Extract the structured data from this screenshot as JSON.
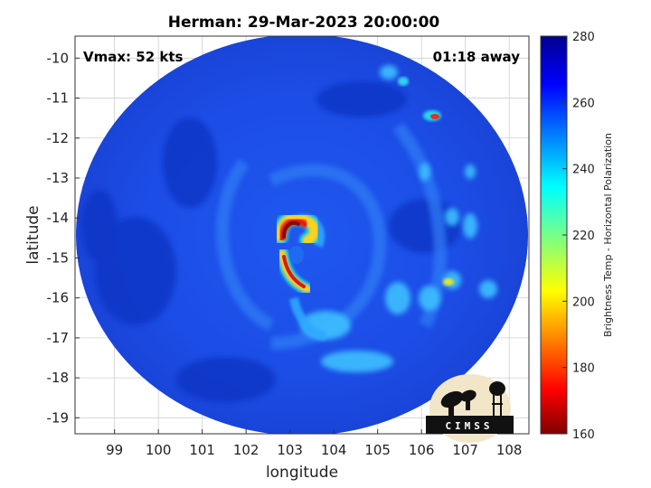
{
  "title": "Herman: 29-Mar-2023 20:00:00",
  "annotations": {
    "vmax": "Vmax: 52 kts",
    "time_away": "01:18 away"
  },
  "axes": {
    "xlabel": "longitude",
    "ylabel": "latitude",
    "xlim": [
      98.1,
      108.45
    ],
    "ylim": [
      -19.4,
      -9.45
    ],
    "xticks": [
      "99",
      "100",
      "101",
      "102",
      "103",
      "104",
      "105",
      "106",
      "107",
      "108"
    ],
    "yticks": [
      "-10",
      "-11",
      "-12",
      "-13",
      "-14",
      "-15",
      "-16",
      "-17",
      "-18",
      "-19"
    ],
    "grid": true
  },
  "colorbar": {
    "label": "Brightness Temp - Horizontal Polarization",
    "min": 160,
    "max": 280,
    "ticks": [
      "280",
      "260",
      "240",
      "220",
      "200",
      "180",
      "160"
    ],
    "colormap": "jet"
  },
  "swath": {
    "center_lon": 103.3,
    "center_lat": -14.5,
    "background_temp": 262,
    "eyewall_temp": 185,
    "rainband_temp": 240
  },
  "logo": {
    "text": "CIMSS"
  },
  "colors": {
    "background_blue": "#1a44e0",
    "deep_blue": "#0a2a9c",
    "cyan_band": "#33c8ff",
    "convection_red": "#c81818",
    "logo_bg": "#f2e6c8",
    "logo_dark": "#111111"
  }
}
